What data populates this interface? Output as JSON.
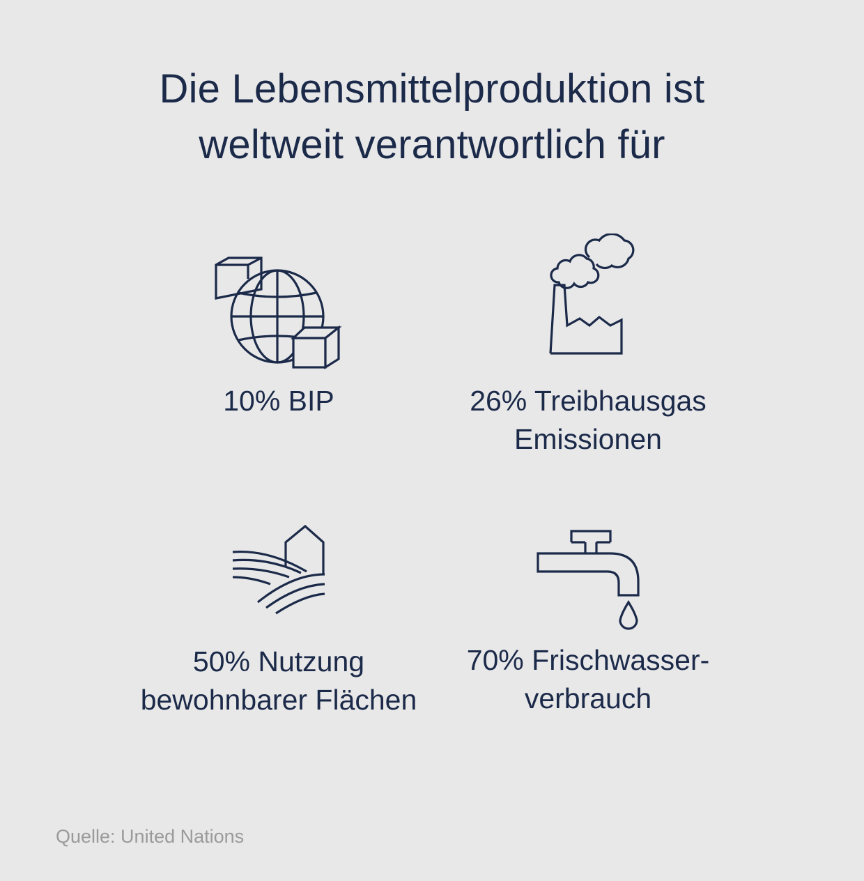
{
  "title": {
    "line1": "Die Lebensmittelproduktion ist",
    "line2": "weltweit verantwortlich für"
  },
  "items": [
    {
      "icon": "globe-with-boxes-icon",
      "line1": "10% BIP",
      "line2": ""
    },
    {
      "icon": "factory-icon",
      "line1": "26% Treibhausgas",
      "line2": "Emissionen"
    },
    {
      "icon": "farmland-house-icon",
      "line1": "50% Nutzung",
      "line2": "bewohnbarer Flächen"
    },
    {
      "icon": "water-tap-icon",
      "line1": "70% Frischwasser-",
      "line2": "verbrauch"
    }
  ],
  "source": "Quelle: United Nations",
  "colors": {
    "background": "#e8e8e8",
    "ink": "#1c2a4a",
    "source_text": "#9a9a9a"
  }
}
